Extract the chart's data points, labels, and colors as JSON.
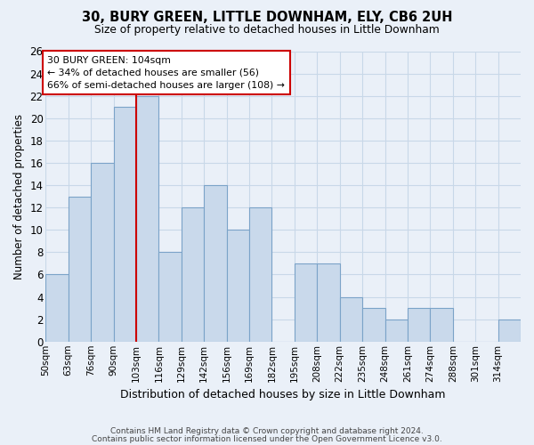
{
  "title": "30, BURY GREEN, LITTLE DOWNHAM, ELY, CB6 2UH",
  "subtitle": "Size of property relative to detached houses in Little Downham",
  "xlabel": "Distribution of detached houses by size in Little Downham",
  "ylabel": "Number of detached properties",
  "footer_line1": "Contains HM Land Registry data © Crown copyright and database right 2024.",
  "footer_line2": "Contains public sector information licensed under the Open Government Licence v3.0.",
  "bin_labels": [
    "50sqm",
    "63sqm",
    "76sqm",
    "90sqm",
    "103sqm",
    "116sqm",
    "129sqm",
    "142sqm",
    "156sqm",
    "169sqm",
    "182sqm",
    "195sqm",
    "208sqm",
    "222sqm",
    "235sqm",
    "248sqm",
    "261sqm",
    "274sqm",
    "288sqm",
    "301sqm",
    "314sqm"
  ],
  "bar_heights": [
    6,
    13,
    16,
    21,
    22,
    8,
    12,
    14,
    10,
    12,
    0,
    7,
    7,
    4,
    3,
    2,
    3,
    3,
    0,
    0,
    2
  ],
  "bar_color": "#c9d9eb",
  "bar_edge_color": "#7ba3c8",
  "grid_color": "#c8d8e8",
  "background_color": "#eaf0f8",
  "property_line_color": "#cc0000",
  "annotation_text": "30 BURY GREEN: 104sqm\n← 34% of detached houses are smaller (56)\n66% of semi-detached houses are larger (108) →",
  "annotation_box_color": "#ffffff",
  "annotation_box_edge_color": "#cc0000",
  "ylim": [
    0,
    26
  ],
  "yticks": [
    0,
    2,
    4,
    6,
    8,
    10,
    12,
    14,
    16,
    18,
    20,
    22,
    24,
    26
  ]
}
